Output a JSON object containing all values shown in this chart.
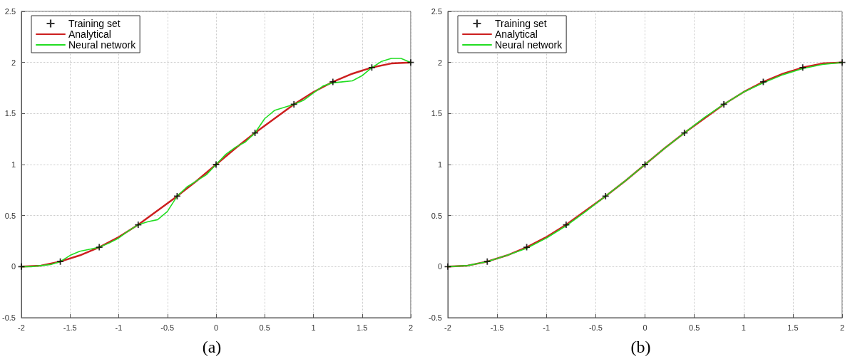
{
  "chart_data": [
    {
      "type": "line",
      "title": "(a)",
      "xlim": [
        -2,
        2
      ],
      "xticks": [
        -2,
        -1.5,
        -1,
        -0.5,
        0,
        0.5,
        1,
        1.5,
        2
      ],
      "ylim": [
        -0.5,
        2.5
      ],
      "yticks": [
        -0.5,
        0,
        0.5,
        1,
        1.5,
        2,
        2.5
      ],
      "grid": true,
      "legend": "top left",
      "series": [
        {
          "name": "Training set",
          "type": "scatter",
          "marker": "cross",
          "color": "#000000",
          "x": [
            -2,
            -1.6,
            -1.2,
            -0.8,
            -0.4,
            0,
            0.4,
            0.8,
            1.2,
            1.6,
            2
          ],
          "values": [
            0,
            0.05,
            0.19,
            0.41,
            0.69,
            1,
            1.31,
            1.59,
            1.81,
            1.95,
            2
          ]
        },
        {
          "name": "Analytical",
          "color": "#cc1f1f",
          "x": [
            -2,
            -1.8,
            -1.6,
            -1.4,
            -1.2,
            -1,
            -0.8,
            -0.6,
            -0.4,
            -0.2,
            0,
            0.2,
            0.4,
            0.6,
            0.8,
            1,
            1.2,
            1.4,
            1.6,
            1.8,
            2
          ],
          "values": [
            0,
            0.01,
            0.05,
            0.11,
            0.19,
            0.29,
            0.41,
            0.55,
            0.69,
            0.84,
            1,
            1.16,
            1.31,
            1.45,
            1.59,
            1.71,
            1.81,
            1.89,
            1.95,
            1.99,
            2
          ]
        },
        {
          "name": "Neural network",
          "color": "#22dd22",
          "x": [
            -2,
            -1.9,
            -1.8,
            -1.7,
            -1.6,
            -1.5,
            -1.4,
            -1.3,
            -1.2,
            -1.1,
            -1,
            -0.9,
            -0.8,
            -0.7,
            -0.6,
            -0.5,
            -0.4,
            -0.3,
            -0.2,
            -0.1,
            0,
            0.1,
            0.2,
            0.3,
            0.4,
            0.5,
            0.6,
            0.7,
            0.8,
            0.9,
            1,
            1.1,
            1.2,
            1.3,
            1.4,
            1.5,
            1.6,
            1.7,
            1.8,
            1.9,
            2
          ],
          "values": [
            0,
            0,
            0.01,
            0.02,
            0.05,
            0.11,
            0.15,
            0.17,
            0.19,
            0.23,
            0.28,
            0.35,
            0.41,
            0.44,
            0.46,
            0.54,
            0.69,
            0.78,
            0.84,
            0.9,
            1,
            1.1,
            1.17,
            1.22,
            1.31,
            1.45,
            1.53,
            1.56,
            1.59,
            1.63,
            1.7,
            1.77,
            1.8,
            1.81,
            1.82,
            1.87,
            1.95,
            2.01,
            2.04,
            2.04,
            2
          ]
        }
      ]
    },
    {
      "type": "line",
      "title": "(b)",
      "xlim": [
        -2,
        2
      ],
      "xticks": [
        -2,
        -1.5,
        -1,
        -0.5,
        0,
        0.5,
        1,
        1.5,
        2
      ],
      "ylim": [
        -0.5,
        2.5
      ],
      "yticks": [
        -0.5,
        0,
        0.5,
        1,
        1.5,
        2,
        2.5
      ],
      "grid": true,
      "legend": "top left",
      "series": [
        {
          "name": "Training set",
          "type": "scatter",
          "marker": "cross",
          "color": "#000000",
          "x": [
            -2,
            -1.6,
            -1.2,
            -0.8,
            -0.4,
            0,
            0.4,
            0.8,
            1.2,
            1.6,
            2
          ],
          "values": [
            0,
            0.05,
            0.19,
            0.41,
            0.69,
            1,
            1.31,
            1.59,
            1.81,
            1.95,
            2
          ]
        },
        {
          "name": "Analytical",
          "color": "#cc1f1f",
          "x": [
            -2,
            -1.8,
            -1.6,
            -1.4,
            -1.2,
            -1,
            -0.8,
            -0.6,
            -0.4,
            -0.2,
            0,
            0.2,
            0.4,
            0.6,
            0.8,
            1,
            1.2,
            1.4,
            1.6,
            1.8,
            2
          ],
          "values": [
            0,
            0.01,
            0.05,
            0.11,
            0.19,
            0.29,
            0.41,
            0.55,
            0.69,
            0.84,
            1,
            1.16,
            1.31,
            1.45,
            1.59,
            1.71,
            1.81,
            1.89,
            1.95,
            1.99,
            2
          ]
        },
        {
          "name": "Neural network",
          "color": "#22dd22",
          "x": [
            -2,
            -1.8,
            -1.6,
            -1.4,
            -1.2,
            -1,
            -0.8,
            -0.6,
            -0.4,
            -0.2,
            0,
            0.2,
            0.4,
            0.6,
            0.8,
            1,
            1.2,
            1.4,
            1.6,
            1.8,
            2
          ],
          "values": [
            0,
            0.01,
            0.05,
            0.11,
            0.18,
            0.28,
            0.4,
            0.54,
            0.69,
            0.84,
            1,
            1.16,
            1.31,
            1.46,
            1.59,
            1.71,
            1.8,
            1.88,
            1.94,
            1.98,
            2
          ]
        }
      ]
    }
  ]
}
